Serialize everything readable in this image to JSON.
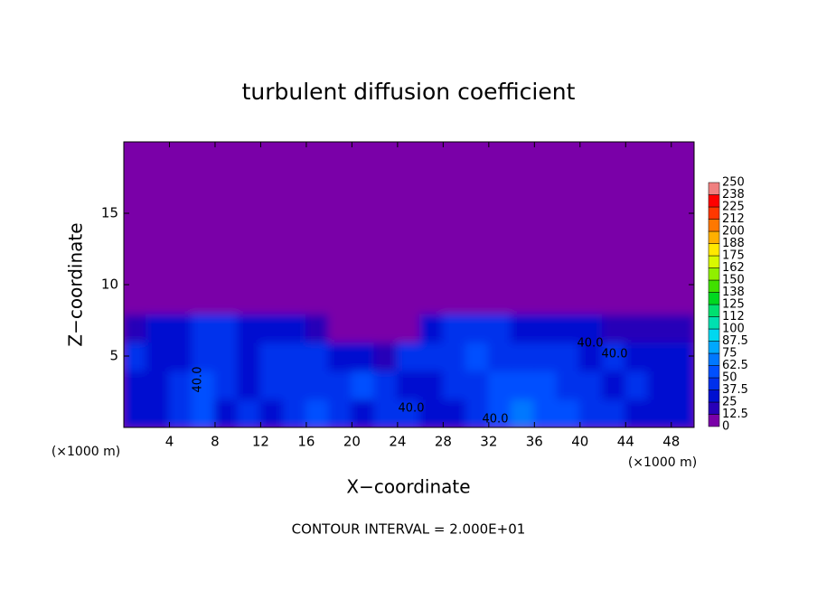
{
  "chart_data": {
    "type": "heatmap",
    "title": "turbulent diffusion coefficient",
    "xlabel": "X−coordinate",
    "ylabel": "Z−coordinate",
    "xunit": "(×1000 m)",
    "note": "CONTOUR INTERVAL = 2.000E+01",
    "contour_labels": [
      "40.0",
      "40.0",
      "40.0",
      "40.0",
      "40.0"
    ],
    "xlim": [
      0,
      50
    ],
    "ylim": [
      0,
      20
    ],
    "xticks": [
      4,
      8,
      12,
      16,
      20,
      24,
      28,
      32,
      36,
      40,
      44,
      48
    ],
    "yticks": [
      5,
      10,
      15
    ],
    "x": [
      1,
      3,
      5,
      7,
      9,
      11,
      13,
      15,
      17,
      19,
      21,
      23,
      25,
      27,
      29,
      31,
      33,
      35,
      37,
      39,
      41,
      43,
      45,
      47,
      49
    ],
    "y": [
      1,
      3,
      5,
      7,
      9,
      11,
      13,
      15,
      17,
      19
    ],
    "z": [
      [
        30,
        35,
        45,
        55,
        35,
        40,
        35,
        45,
        60,
        40,
        35,
        45,
        40,
        30,
        35,
        45,
        55,
        65,
        60,
        50,
        45,
        40,
        35,
        30,
        35
      ],
      [
        35,
        30,
        40,
        50,
        40,
        35,
        40,
        45,
        40,
        45,
        50,
        45,
        35,
        30,
        40,
        45,
        55,
        60,
        55,
        45,
        40,
        35,
        40,
        35,
        30
      ],
      [
        40,
        35,
        30,
        40,
        38,
        36,
        40,
        42,
        38,
        35,
        30,
        15,
        40,
        45,
        40,
        50,
        45,
        40,
        45,
        40,
        30,
        40,
        35,
        30,
        25
      ],
      [
        20,
        25,
        30,
        40,
        38,
        36,
        35,
        30,
        20,
        8,
        5,
        5,
        5,
        30,
        38,
        40,
        38,
        35,
        32,
        30,
        25,
        20,
        15,
        20,
        15
      ],
      [
        0,
        0,
        0,
        10,
        5,
        0,
        0,
        0,
        0,
        0,
        0,
        0,
        0,
        0,
        5,
        5,
        5,
        0,
        0,
        0,
        0,
        0,
        0,
        0,
        0
      ],
      [
        0,
        0,
        0,
        0,
        0,
        0,
        0,
        0,
        0,
        0,
        0,
        0,
        0,
        0,
        0,
        0,
        0,
        0,
        0,
        0,
        0,
        0,
        0,
        0,
        0
      ],
      [
        0,
        0,
        0,
        0,
        0,
        0,
        0,
        0,
        0,
        0,
        0,
        0,
        0,
        0,
        0,
        0,
        0,
        0,
        0,
        0,
        0,
        0,
        0,
        0,
        0
      ],
      [
        0,
        0,
        0,
        0,
        0,
        0,
        0,
        0,
        0,
        0,
        0,
        0,
        0,
        0,
        0,
        0,
        0,
        0,
        0,
        0,
        0,
        0,
        0,
        0,
        0
      ],
      [
        0,
        0,
        0,
        0,
        0,
        0,
        0,
        0,
        0,
        0,
        0,
        0,
        0,
        0,
        0,
        0,
        0,
        0,
        0,
        0,
        0,
        0,
        0,
        0,
        0
      ],
      [
        0,
        0,
        0,
        0,
        0,
        0,
        0,
        0,
        0,
        0,
        0,
        0,
        0,
        0,
        0,
        0,
        0,
        0,
        0,
        0,
        0,
        0,
        0,
        0,
        0
      ]
    ],
    "levels": [
      0,
      12.5,
      25,
      37.5,
      50,
      62.5,
      75,
      87.5,
      100,
      {
        "value": 112.5,
        "label": "112"
      },
      125,
      {
        "value": 137.5,
        "label": "138"
      },
      150,
      {
        "value": 162.5,
        "label": "162"
      },
      175,
      {
        "value": 187.5,
        "label": "188"
      },
      200,
      {
        "value": 212.5,
        "label": "212"
      },
      225,
      {
        "value": 237.5,
        "label": "238"
      },
      250
    ],
    "colors": [
      "#7a00a8",
      "#2800b8",
      "#0010d0",
      "#0030ec",
      "#0050ff",
      "#0078ff",
      "#00a8ff",
      "#00d8f0",
      "#00e0b0",
      "#00e070",
      "#00d820",
      "#40e000",
      "#90f000",
      "#d8f800",
      "#ffe800",
      "#ffb000",
      "#ff7800",
      "#ff3800",
      "#ff0000",
      "#f08080"
    ]
  }
}
